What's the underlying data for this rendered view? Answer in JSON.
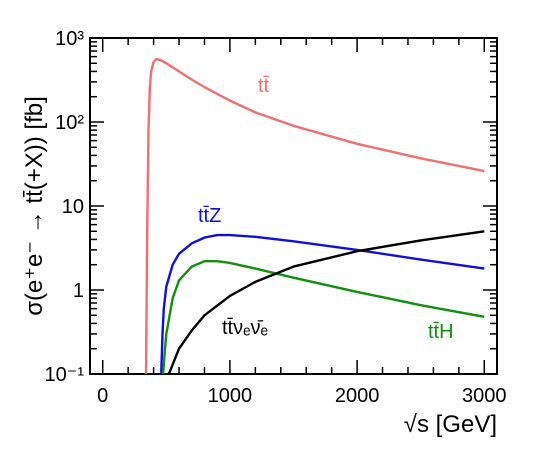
{
  "chart_data": {
    "type": "line",
    "title": "",
    "xlabel": "√s [GeV]",
    "ylabel": "σ(e⁺e⁻ → tt̄(+X)) [fb]",
    "x_scale": "linear",
    "y_scale": "log",
    "xlim": [
      -100,
      3100
    ],
    "ylim": [
      0.1,
      1000
    ],
    "x_ticks": [
      0,
      1000,
      2000,
      3000
    ],
    "x_tick_labels": [
      "0",
      "1000",
      "2000",
      "3000"
    ],
    "y_ticks": [
      0.1,
      1,
      10,
      100,
      1000
    ],
    "y_tick_labels": [
      "10⁻¹",
      "1",
      "10",
      "10²",
      "10³"
    ],
    "grid": false,
    "legend": "inline labels",
    "series": [
      {
        "name": "tt̄",
        "color": "#f07070",
        "points": [
          [
            340,
            0.1
          ],
          [
            350,
            5
          ],
          [
            360,
            80
          ],
          [
            370,
            250
          ],
          [
            380,
            400
          ],
          [
            400,
            520
          ],
          [
            420,
            560
          ],
          [
            450,
            550
          ],
          [
            500,
            500
          ],
          [
            600,
            400
          ],
          [
            700,
            320
          ],
          [
            800,
            260
          ],
          [
            1000,
            180
          ],
          [
            1200,
            130
          ],
          [
            1500,
            90
          ],
          [
            2000,
            55
          ],
          [
            2500,
            37
          ],
          [
            3000,
            26
          ]
        ]
      },
      {
        "name": "tt̄Z",
        "color": "#1010d0",
        "points": [
          [
            460,
            0.1
          ],
          [
            470,
            0.3
          ],
          [
            480,
            0.6
          ],
          [
            500,
            1.1
          ],
          [
            550,
            2
          ],
          [
            600,
            2.7
          ],
          [
            700,
            3.6
          ],
          [
            800,
            4.2
          ],
          [
            900,
            4.5
          ],
          [
            1000,
            4.5
          ],
          [
            1200,
            4.3
          ],
          [
            1500,
            3.8
          ],
          [
            2000,
            3.0
          ],
          [
            2500,
            2.3
          ],
          [
            3000,
            1.8
          ]
        ]
      },
      {
        "name": "tt̄H",
        "color": "#108f10",
        "points": [
          [
            475,
            0.1
          ],
          [
            490,
            0.2
          ],
          [
            500,
            0.3
          ],
          [
            550,
            0.8
          ],
          [
            600,
            1.3
          ],
          [
            700,
            1.9
          ],
          [
            800,
            2.2
          ],
          [
            900,
            2.2
          ],
          [
            1000,
            2.1
          ],
          [
            1200,
            1.8
          ],
          [
            1500,
            1.4
          ],
          [
            2000,
            0.95
          ],
          [
            2500,
            0.66
          ],
          [
            3000,
            0.48
          ]
        ]
      },
      {
        "name": "tt̄νₑν̄ₑ",
        "color": "#000000",
        "points": [
          [
            520,
            0.1
          ],
          [
            550,
            0.13
          ],
          [
            600,
            0.2
          ],
          [
            700,
            0.33
          ],
          [
            800,
            0.5
          ],
          [
            1000,
            0.85
          ],
          [
            1200,
            1.25
          ],
          [
            1500,
            1.9
          ],
          [
            2000,
            2.9
          ],
          [
            2500,
            3.9
          ],
          [
            3000,
            5.0
          ]
        ]
      }
    ]
  }
}
